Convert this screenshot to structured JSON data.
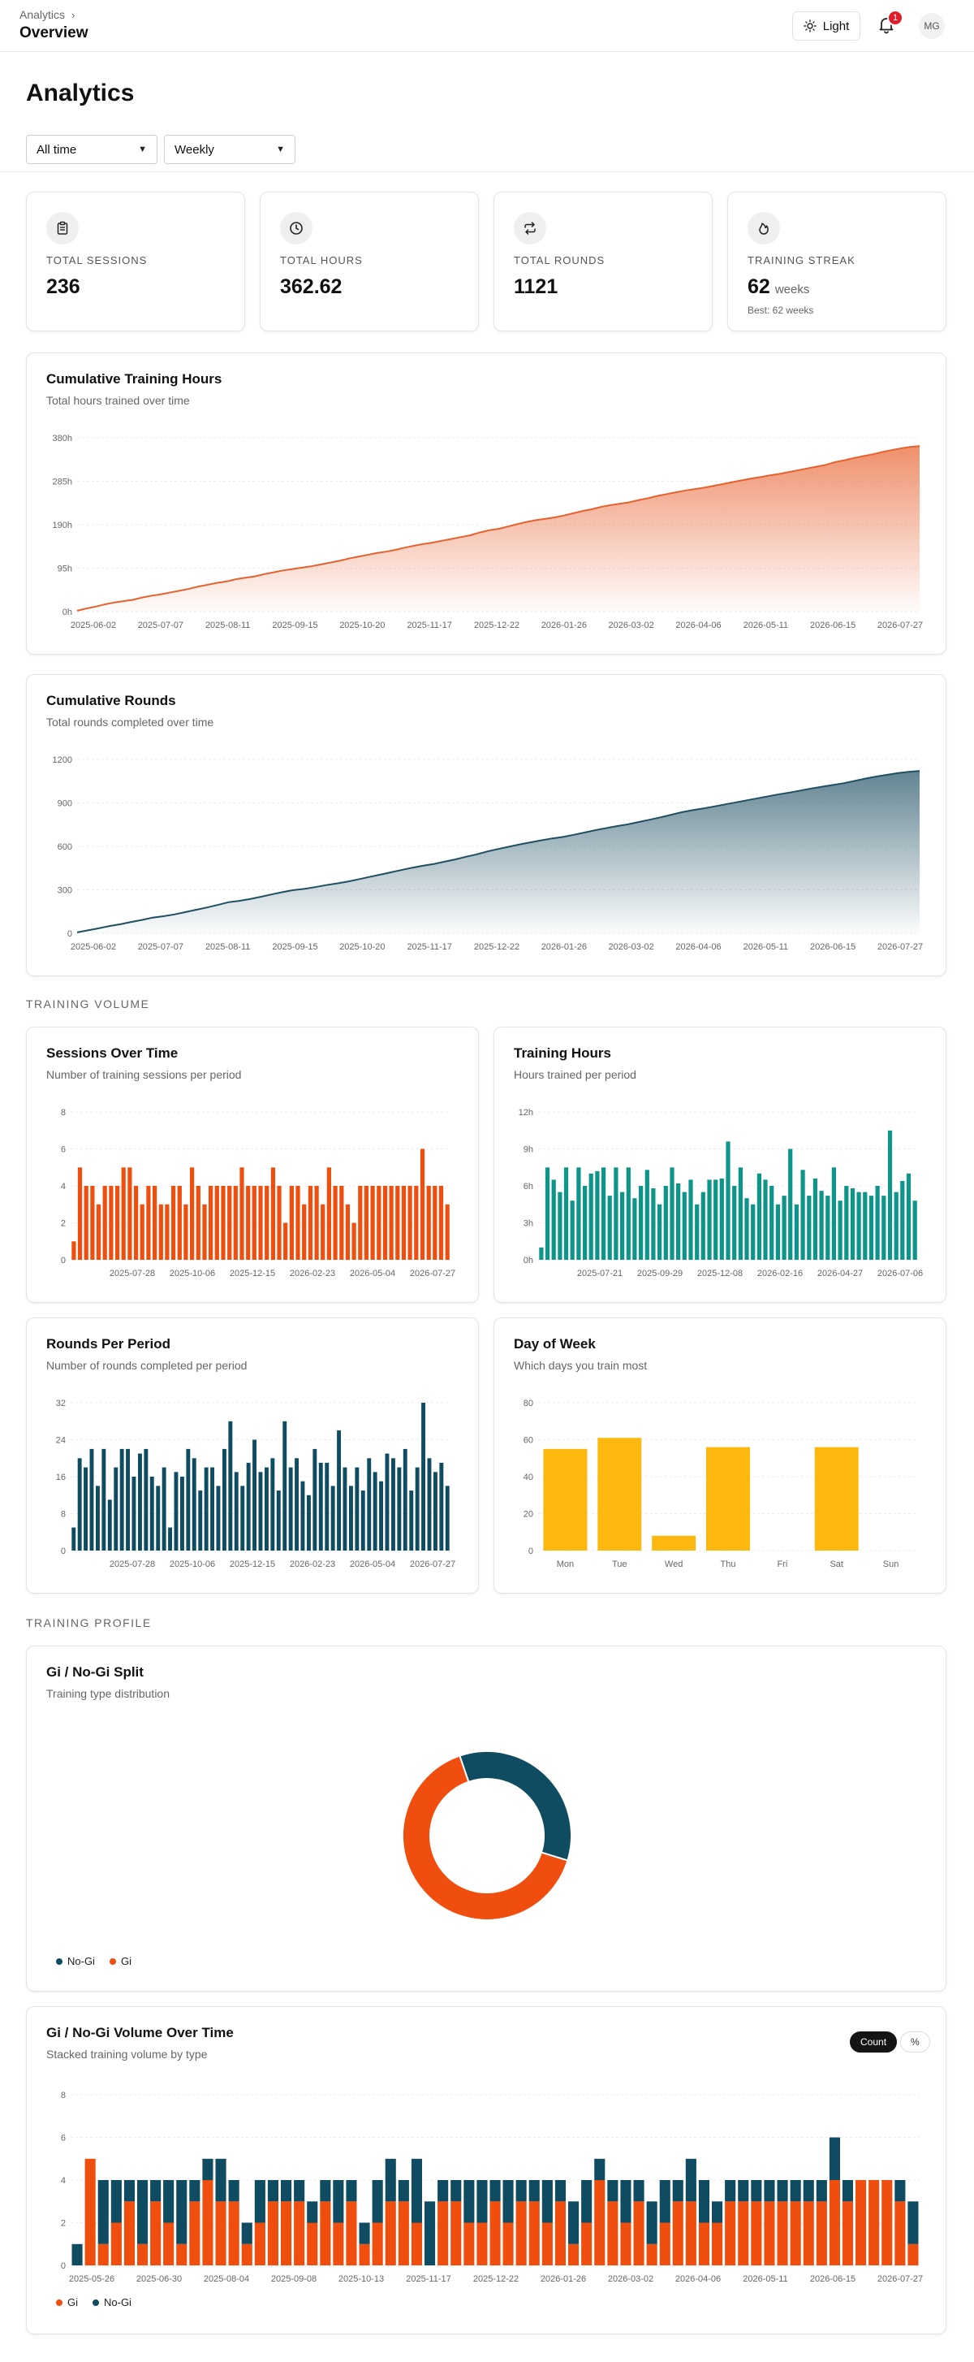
{
  "header": {
    "breadcrumb": "Analytics",
    "page": "Overview",
    "theme_label": "Light",
    "notification_count": "1",
    "avatar_initials": "MG"
  },
  "title": "Analytics",
  "filters": {
    "range": "All time",
    "period": "Weekly"
  },
  "stats": [
    {
      "label": "TOTAL SESSIONS",
      "value": "236",
      "icon": "clipboard-icon"
    },
    {
      "label": "TOTAL HOURS",
      "value": "362.62",
      "icon": "clock-icon"
    },
    {
      "label": "TOTAL ROUNDS",
      "value": "1121",
      "icon": "repeat-icon"
    },
    {
      "label": "TRAINING STREAK",
      "value": "62",
      "unit": "weeks",
      "sub": "Best: 62 weeks",
      "icon": "flame-icon"
    }
  ],
  "sections": {
    "volume": "TRAINING VOLUME",
    "profile": "TRAINING PROFILE"
  },
  "colors": {
    "orange": "#F04E0E",
    "teal": "#0E958A",
    "navy": "#0F4C62",
    "yellow": "#FDB80F",
    "cum_hours": "#E8602C",
    "cum_rounds": "#1E4F63"
  },
  "cards": {
    "cum_hours": {
      "title": "Cumulative Training Hours",
      "subtitle": "Total hours trained over time"
    },
    "cum_rounds": {
      "title": "Cumulative Rounds",
      "subtitle": "Total rounds completed over time"
    },
    "sessions": {
      "title": "Sessions Over Time",
      "subtitle": "Number of training sessions per period"
    },
    "hours": {
      "title": "Training Hours",
      "subtitle": "Hours trained per period"
    },
    "rounds": {
      "title": "Rounds Per Period",
      "subtitle": "Number of rounds completed per period"
    },
    "dow": {
      "title": "Day of Week",
      "subtitle": "Which days you train most"
    },
    "gi_split": {
      "title": "Gi / No-Gi Split",
      "subtitle": "Training type distribution"
    },
    "gi_volume": {
      "title": "Gi / No-Gi Volume Over Time",
      "subtitle": "Stacked training volume by type",
      "toggle_count": "Count",
      "toggle_pct": "%"
    }
  },
  "chart_data": [
    {
      "id": "cum_hours",
      "type": "area",
      "ylim": [
        0,
        380
      ],
      "yticks": [
        "0h",
        "95h",
        "190h",
        "285h",
        "380h"
      ],
      "ytick_values": [
        0,
        95,
        190,
        285,
        380
      ],
      "xticks": [
        "2025-06-02",
        "2025-07-07",
        "2025-08-11",
        "2025-09-15",
        "2025-10-20",
        "2025-11-17",
        "2025-12-22",
        "2026-01-26",
        "2026-03-02",
        "2026-04-06",
        "2026-05-11",
        "2026-06-15",
        "2026-07-27"
      ],
      "values": [
        2,
        7,
        11,
        16,
        20,
        23,
        26,
        31,
        35,
        38,
        42,
        46,
        50,
        55,
        59,
        63,
        66,
        71,
        74,
        77,
        82,
        86,
        90,
        93,
        96,
        99,
        103,
        107,
        111,
        116,
        120,
        124,
        128,
        131,
        135,
        140,
        144,
        148,
        151,
        155,
        159,
        163,
        167,
        173,
        178,
        181,
        186,
        191,
        196,
        200,
        203,
        206,
        210,
        215,
        220,
        224,
        229,
        233,
        236,
        239,
        244,
        248,
        253,
        257,
        261,
        265,
        268,
        271,
        275,
        279,
        283,
        287,
        291,
        294,
        298,
        301,
        305,
        309,
        313,
        317,
        321,
        327,
        331,
        336,
        340,
        344,
        349,
        353,
        357,
        360,
        362
      ]
    },
    {
      "id": "cum_rounds",
      "type": "area",
      "ylim": [
        0,
        1200
      ],
      "yticks": [
        "0",
        "300",
        "600",
        "900",
        "1200"
      ],
      "ytick_values": [
        0,
        300,
        600,
        900,
        1200
      ],
      "xticks": [
        "2025-06-02",
        "2025-07-07",
        "2025-08-11",
        "2025-09-15",
        "2025-10-20",
        "2025-11-17",
        "2025-12-22",
        "2026-01-26",
        "2026-03-02",
        "2026-04-06",
        "2026-05-11",
        "2026-06-15",
        "2026-07-27"
      ],
      "values": [
        6,
        20,
        34,
        50,
        62,
        78,
        92,
        108,
        118,
        130,
        146,
        162,
        178,
        195,
        214,
        224,
        236,
        252,
        268,
        284,
        298,
        306,
        318,
        332,
        344,
        356,
        372,
        388,
        404,
        420,
        436,
        452,
        466,
        478,
        494,
        510,
        528,
        545,
        565,
        582,
        598,
        614,
        628,
        642,
        655,
        665,
        680,
        696,
        712,
        726,
        740,
        752,
        768,
        784,
        800,
        818,
        836,
        850,
        862,
        876,
        890,
        904,
        918,
        932,
        946,
        960,
        972,
        986,
        1000,
        1012,
        1024,
        1036,
        1052,
        1068,
        1082,
        1094,
        1106,
        1114,
        1121
      ]
    },
    {
      "id": "sessions",
      "type": "bar",
      "color": "orange",
      "ylim": [
        0,
        8
      ],
      "yticks": [
        "0",
        "2",
        "4",
        "6",
        "8"
      ],
      "ytick_values": [
        0,
        2,
        4,
        6,
        8
      ],
      "xticks": [
        "2025-07-28",
        "2025-10-06",
        "2025-12-15",
        "2026-02-23",
        "2026-05-04",
        "2026-07-27"
      ],
      "values": [
        1,
        5,
        4,
        4,
        3,
        4,
        4,
        4,
        5,
        5,
        4,
        3,
        4,
        4,
        3,
        3,
        4,
        4,
        3,
        5,
        4,
        3,
        4,
        4,
        4,
        4,
        4,
        5,
        4,
        4,
        4,
        4,
        5,
        4,
        2,
        4,
        4,
        3,
        4,
        4,
        3,
        5,
        4,
        4,
        3,
        2,
        4,
        4,
        4,
        4,
        4,
        4,
        4,
        4,
        4,
        4,
        6,
        4,
        4,
        4,
        3
      ]
    },
    {
      "id": "hours",
      "type": "bar",
      "color": "teal",
      "ylim": [
        0,
        12
      ],
      "yticks": [
        "0h",
        "3h",
        "6h",
        "9h",
        "12h"
      ],
      "ytick_values": [
        0,
        3,
        6,
        9,
        12
      ],
      "xticks": [
        "2025-07-21",
        "2025-09-29",
        "2025-12-08",
        "2026-02-16",
        "2026-04-27",
        "2026-07-06"
      ],
      "values": [
        1,
        7.5,
        6.5,
        5.5,
        7.5,
        4.8,
        7.5,
        6,
        7,
        7.2,
        7.5,
        5.2,
        7.5,
        5.5,
        7.5,
        5,
        6,
        7.3,
        5.8,
        4.5,
        6,
        7.5,
        6.2,
        5.5,
        6.5,
        4.5,
        5.5,
        6.5,
        6.5,
        6.6,
        9.6,
        6,
        7.5,
        5,
        4.5,
        7,
        6.5,
        6,
        4.5,
        5.2,
        9,
        4.5,
        7.3,
        5.2,
        6.6,
        5.6,
        5.2,
        7.5,
        4.8,
        6,
        5.8,
        5.5,
        5.5,
        5.2,
        6,
        5.2,
        10.5,
        5.5,
        6.4,
        7,
        4.8
      ]
    },
    {
      "id": "rounds",
      "type": "bar",
      "color": "navy",
      "ylim": [
        0,
        32
      ],
      "yticks": [
        "0",
        "8",
        "16",
        "24",
        "32"
      ],
      "ytick_values": [
        0,
        8,
        16,
        24,
        32
      ],
      "xticks": [
        "2025-07-28",
        "2025-10-06",
        "2025-12-15",
        "2026-02-23",
        "2026-05-04",
        "2026-07-27"
      ],
      "values": [
        5,
        20,
        18,
        22,
        14,
        22,
        11,
        18,
        22,
        22,
        16,
        21,
        22,
        16,
        14,
        18,
        5,
        17,
        16,
        22,
        20,
        13,
        18,
        18,
        14,
        22,
        28,
        17,
        14,
        19,
        24,
        17,
        18,
        20,
        13,
        28,
        18,
        20,
        15,
        12,
        22,
        19,
        19,
        14,
        26,
        18,
        14,
        18,
        13,
        20,
        17,
        15,
        21,
        20,
        18,
        22,
        13,
        18,
        32,
        20,
        17,
        19,
        14
      ]
    },
    {
      "id": "dow",
      "type": "bar",
      "color": "yellow",
      "ylim": [
        0,
        80
      ],
      "yticks": [
        "0",
        "20",
        "40",
        "60",
        "80"
      ],
      "ytick_values": [
        0,
        20,
        40,
        60,
        80
      ],
      "categories": [
        "Mon",
        "Tue",
        "Wed",
        "Thu",
        "Fri",
        "Sat",
        "Sun"
      ],
      "values": [
        55,
        61,
        8,
        56,
        0,
        56,
        0
      ]
    },
    {
      "id": "gi_split",
      "type": "pie",
      "slices": [
        {
          "name": "No-Gi",
          "value": 35,
          "color": "navy"
        },
        {
          "name": "Gi",
          "value": 65,
          "color": "orange"
        }
      ],
      "legend": [
        "No-Gi",
        "Gi"
      ]
    },
    {
      "id": "gi_volume",
      "type": "bar",
      "ylim": [
        0,
        8
      ],
      "yticks": [
        "0",
        "2",
        "4",
        "6",
        "8"
      ],
      "ytick_values": [
        0,
        2,
        4,
        6,
        8
      ],
      "xticks": [
        "2025-05-26",
        "2025-06-30",
        "2025-08-04",
        "2025-09-08",
        "2025-10-13",
        "2025-11-17",
        "2025-12-22",
        "2026-01-26",
        "2026-03-02",
        "2026-04-06",
        "2026-05-11",
        "2026-06-15",
        "2026-07-27"
      ],
      "series": [
        {
          "name": "Gi",
          "color": "orange",
          "values": [
            0,
            5,
            1,
            2,
            3,
            1,
            3,
            2,
            1,
            3,
            4,
            3,
            3,
            1,
            2,
            3,
            3,
            3,
            2,
            3,
            2,
            3,
            1,
            2,
            3,
            3,
            2,
            0,
            3,
            3,
            2,
            2,
            3,
            2,
            3,
            3,
            2,
            3,
            1,
            2,
            4,
            3,
            2,
            3,
            1,
            2,
            3,
            3,
            2,
            2,
            3,
            3,
            3,
            3,
            3,
            3,
            3,
            3,
            4,
            3,
            4,
            4,
            4,
            3,
            1
          ]
        },
        {
          "name": "No-Gi",
          "color": "navy",
          "values": [
            1,
            0,
            3,
            2,
            1,
            3,
            1,
            2,
            3,
            1,
            1,
            2,
            1,
            1,
            2,
            1,
            1,
            1,
            1,
            1,
            2,
            1,
            1,
            2,
            2,
            1,
            3,
            3,
            1,
            1,
            2,
            2,
            1,
            2,
            1,
            1,
            2,
            1,
            2,
            2,
            1,
            1,
            2,
            1,
            2,
            2,
            1,
            2,
            2,
            1,
            1,
            1,
            1,
            1,
            1,
            1,
            1,
            1,
            2,
            1,
            0,
            0,
            0,
            1,
            2
          ]
        }
      ],
      "legend": [
        "Gi",
        "No-Gi"
      ]
    }
  ]
}
